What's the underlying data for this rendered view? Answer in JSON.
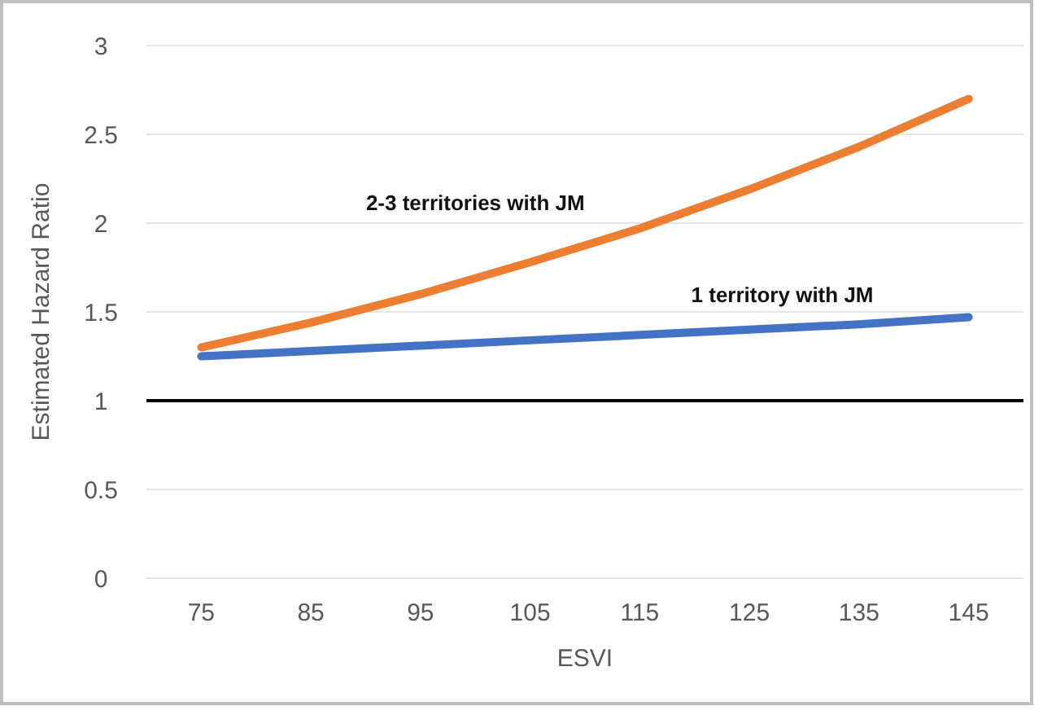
{
  "chart_data": {
    "type": "line",
    "xlabel": "ESVI",
    "ylabel": "Estimated Hazard Ratio",
    "categories": [
      "75",
      "85",
      "95",
      "105",
      "115",
      "125",
      "135",
      "145"
    ],
    "series": [
      {
        "name": "1 territory with JM",
        "color": "#4472c4",
        "values": [
          1.25,
          1.28,
          1.31,
          1.34,
          1.37,
          1.4,
          1.43,
          1.47
        ]
      },
      {
        "name": "2-3 territories with JM",
        "color": "#ed7d31",
        "values": [
          1.3,
          1.44,
          1.6,
          1.78,
          1.97,
          2.19,
          2.43,
          2.7
        ]
      }
    ],
    "ylim": [
      0,
      3
    ],
    "yticks": [
      0,
      0.5,
      1,
      1.5,
      2,
      2.5,
      3
    ],
    "grid": "y",
    "marker": "none",
    "line_style": "solid",
    "ref_lines": [
      {
        "axis": "y",
        "value": 1,
        "color": "#000000"
      }
    ]
  }
}
